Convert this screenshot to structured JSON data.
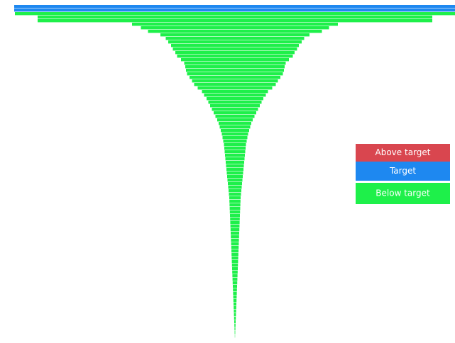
{
  "chart_data": {
    "type": "funnel",
    "series": [
      {
        "name": "Above target",
        "color": "#d9464f",
        "values": [
          null,
          null,
          null,
          null,
          null,
          null,
          null,
          null,
          null,
          null,
          null,
          null,
          null,
          null,
          null,
          null,
          null,
          null,
          null,
          null,
          null,
          null,
          null,
          null,
          null,
          null,
          null,
          null,
          null,
          null,
          null,
          null,
          null,
          null,
          null,
          null,
          null,
          null,
          null,
          null,
          null,
          null,
          null,
          null,
          null,
          null,
          null,
          null,
          null,
          null,
          null,
          null,
          null,
          null,
          null,
          null,
          null,
          null,
          null,
          null,
          null,
          null,
          null,
          null,
          null,
          null,
          null,
          null,
          null,
          null,
          null,
          null,
          null,
          null,
          null,
          null,
          null,
          null,
          null,
          null,
          null,
          null,
          null,
          null,
          null,
          null,
          null,
          null,
          null,
          null,
          null,
          null,
          null,
          null
        ]
      },
      {
        "name": "Target",
        "color": "#1e88f0",
        "values": [
          622,
          622,
          null,
          null,
          null,
          null,
          null,
          null,
          null,
          null,
          null,
          null,
          null,
          null,
          null,
          null,
          null,
          null,
          null,
          null,
          null,
          null,
          null,
          null,
          null,
          null,
          null,
          null,
          null,
          null,
          null,
          null,
          null,
          null,
          null,
          null,
          null,
          null,
          null,
          null,
          null,
          null,
          null,
          null,
          null,
          null,
          null,
          null,
          null,
          null,
          null,
          null,
          null,
          null,
          null,
          null,
          null,
          null,
          null,
          null,
          null,
          null,
          null,
          null,
          null,
          null,
          null,
          null,
          null,
          null,
          null,
          null,
          null,
          null,
          null,
          null,
          null,
          null,
          null,
          null,
          null,
          null,
          null,
          null,
          null,
          null,
          null,
          null,
          null,
          null,
          null,
          null,
          null,
          null
        ]
      },
      {
        "name": "Below target",
        "color": "#1ef04a",
        "values": [
          null,
          null,
          620,
          556,
          556,
          290,
          265,
          245,
          210,
          195,
          188,
          180,
          175,
          168,
          163,
          152,
          143,
          140,
          138,
          135,
          128,
          121,
          115,
          105,
          93,
          87,
          80,
          75,
          70,
          65,
          60,
          55,
          50,
          46,
          43,
          40,
          37,
          35,
          33,
          31,
          30,
          29,
          28,
          27,
          26,
          25,
          24,
          23,
          22,
          21,
          20,
          19,
          18,
          17,
          16,
          15.6,
          15.2,
          14.8,
          14.4,
          14,
          13.6,
          13.2,
          12.8,
          12.4,
          12,
          11.6,
          11.2,
          10.8,
          10.4,
          10,
          9.6,
          9.2,
          8.8,
          8.4,
          8,
          7.6,
          7.2,
          6.8,
          6.4,
          6,
          5.6,
          5.2,
          4.8,
          4.4,
          4,
          3.6,
          3.2,
          2.8,
          2.4,
          2,
          1.6,
          1.2,
          0.8,
          0.4
        ]
      }
    ]
  }
}
